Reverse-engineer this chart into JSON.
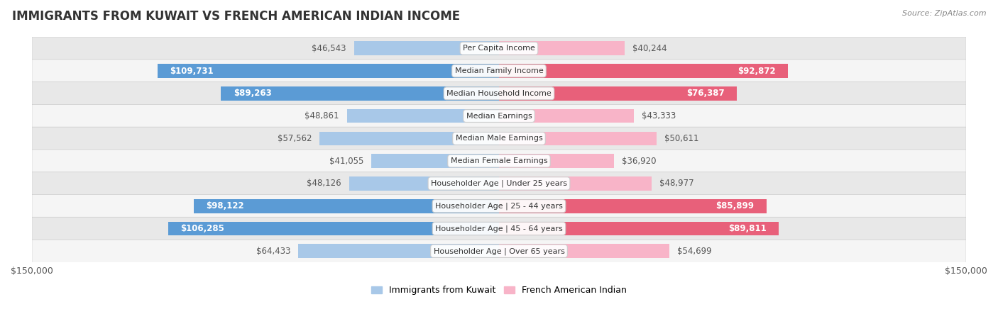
{
  "title": "IMMIGRANTS FROM KUWAIT VS FRENCH AMERICAN INDIAN INCOME",
  "source": "Source: ZipAtlas.com",
  "categories": [
    "Per Capita Income",
    "Median Family Income",
    "Median Household Income",
    "Median Earnings",
    "Median Male Earnings",
    "Median Female Earnings",
    "Householder Age | Under 25 years",
    "Householder Age | 25 - 44 years",
    "Householder Age | 45 - 64 years",
    "Householder Age | Over 65 years"
  ],
  "kuwait_values": [
    46543,
    109731,
    89263,
    48861,
    57562,
    41055,
    48126,
    98122,
    106285,
    64433
  ],
  "french_values": [
    40244,
    92872,
    76387,
    43333,
    50611,
    36920,
    48977,
    85899,
    89811,
    54699
  ],
  "kuwait_color_light": "#a8c8e8",
  "kuwait_color_dark": "#5b9bd5",
  "french_color_light": "#f8b4c8",
  "french_color_dark": "#e8607a",
  "max_val": 150000,
  "row_bg_color": "#f0f0f0",
  "fig_bg_color": "#ffffff",
  "inside_label_threshold": 70000,
  "label_fontsize": 8.5,
  "title_fontsize": 12,
  "legend_fontsize": 9
}
